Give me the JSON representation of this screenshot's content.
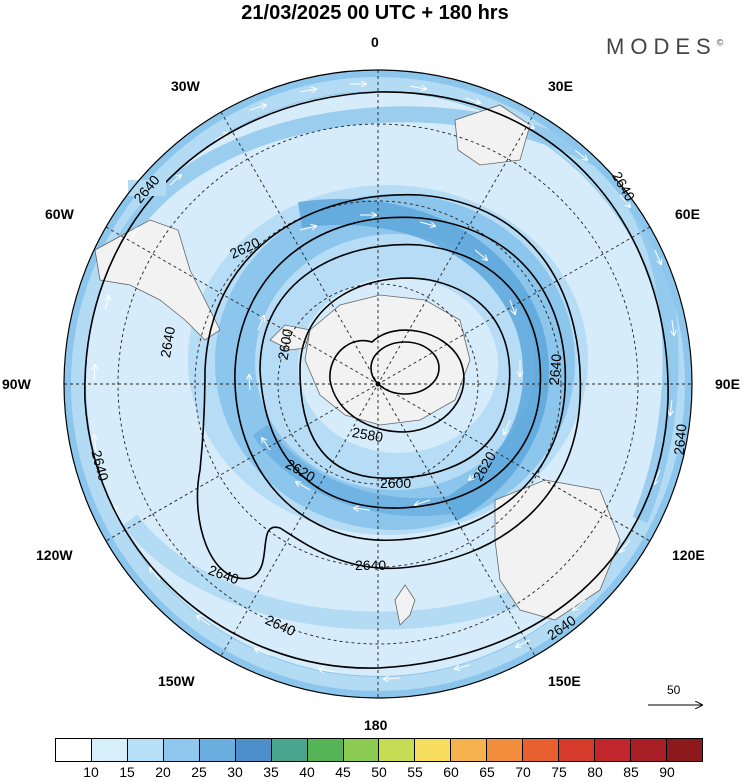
{
  "title": "21/03/2025  00 UTC  + 180 hrs",
  "brand": "MODES",
  "brand_mark": "©",
  "longitude_labels": [
    {
      "id": "lon-0",
      "text": "0"
    },
    {
      "id": "lon-30e",
      "text": "30E"
    },
    {
      "id": "lon-60e",
      "text": "60E"
    },
    {
      "id": "lon-90e",
      "text": "90E"
    },
    {
      "id": "lon-120e",
      "text": "120E"
    },
    {
      "id": "lon-150e",
      "text": "150E"
    },
    {
      "id": "lon-180",
      "text": "180"
    },
    {
      "id": "lon-150w",
      "text": "150W"
    },
    {
      "id": "lon-120w",
      "text": "120W"
    },
    {
      "id": "lon-90w",
      "text": "90W"
    },
    {
      "id": "lon-60w",
      "text": "60W"
    },
    {
      "id": "lon-30w",
      "text": "30W"
    }
  ],
  "contour_labels": [
    "2640",
    "2620",
    "2600",
    "2580"
  ],
  "reference_vector": "50",
  "legend": {
    "ticks": [
      "10",
      "15",
      "20",
      "25",
      "30",
      "35",
      "40",
      "45",
      "50",
      "55",
      "60",
      "65",
      "70",
      "75",
      "80",
      "85",
      "90"
    ],
    "colors": [
      "#ffffff",
      "#d7eefb",
      "#b6e0f7",
      "#8fc8ee",
      "#6aaee0",
      "#4d8fca",
      "#4aa58f",
      "#55b455",
      "#8ccb52",
      "#c6dc55",
      "#f7dd5e",
      "#f6b24d",
      "#f28d3e",
      "#e8602f",
      "#d63a2b",
      "#c0262b",
      "#a71f25",
      "#8c1a1c"
    ]
  },
  "colors": {
    "ocean_light": "#d6ecfa",
    "ocean_mid": "#b3dbf4",
    "band_mid": "#8cc6ec",
    "band_strong": "#5ea7dc",
    "land": "#f2f2f2"
  }
}
